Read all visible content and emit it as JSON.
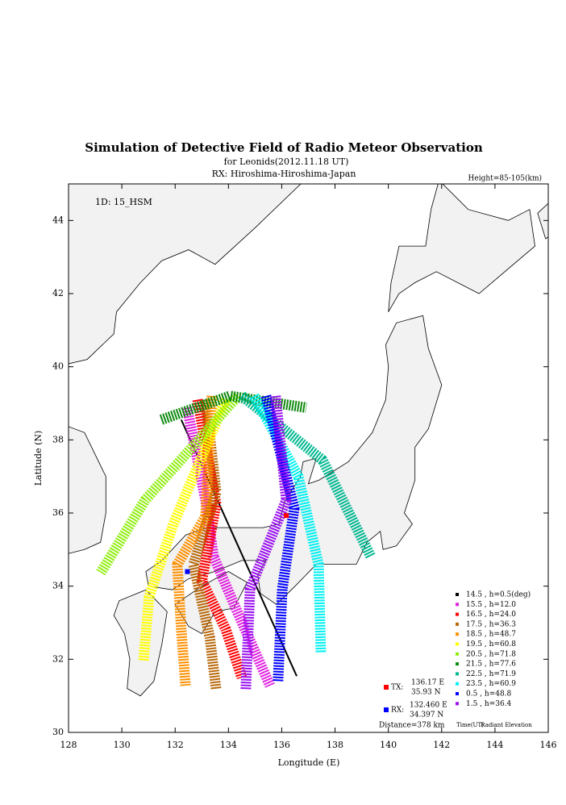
{
  "chart_data": {
    "type": "line",
    "title": "Simulation of Detective Field of Radio Meteor Observation",
    "subtitle": "for Leonids(2012.11.18 UT)",
    "rx_line": "RX: Hiroshima-Hiroshima-Japan",
    "height_label": "Height=85-105(km)",
    "id_label": "1D: 15_HSM",
    "x_label": "Longitude (E)",
    "y_label": "Latitude (N)",
    "xlim": [
      128,
      146
    ],
    "ylim": [
      30,
      45
    ],
    "xticks": [
      128,
      130,
      132,
      134,
      136,
      138,
      140,
      142,
      144,
      146
    ],
    "yticks": [
      30,
      32,
      34,
      36,
      38,
      40,
      42,
      44
    ],
    "legend_time_header": "Time(UT)",
    "legend_elev_header": "Radiant Elevation",
    "tx": {
      "label": "TX:",
      "lon_label": "136.17 E",
      "lat_label": "35.93 N",
      "x": 136.17,
      "y": 35.93,
      "color": "#ff0000"
    },
    "rx": {
      "label": "RX:",
      "lon_label": "132.460 E",
      "lat_label": "34.397 N",
      "x": 132.46,
      "y": 34.397,
      "color": "#0000ff"
    },
    "distance": "Distance=378 km",
    "series": [
      {
        "name": "14.5 ,  h=0.5(deg)",
        "color": "#000000",
        "x": [
          132.23,
          136.56
        ],
        "y": [
          38.55,
          31.54
        ]
      },
      {
        "name": "15.5 ,  h=12.0",
        "color": "#e020e0",
        "x": [
          132.45,
          132.69,
          133.14,
          133.44,
          134.35,
          135.56
        ],
        "y": [
          38.88,
          38.0,
          36.35,
          34.81,
          33.27,
          31.28
        ]
      },
      {
        "name": "16.5 ,  h=24.0",
        "color": "#ff0000",
        "x": [
          132.84,
          133.54,
          133.0,
          133.9,
          134.5
        ],
        "y": [
          39.1,
          36.24,
          34.14,
          32.82,
          31.5
        ]
      },
      {
        "name": "17.5 ,  h=36.3",
        "color": "#b8680a",
        "x": [
          133.14,
          133.54,
          132.69,
          133.3,
          133.54
        ],
        "y": [
          39.1,
          36.57,
          34.59,
          32.6,
          31.17
        ]
      },
      {
        "name": "18.5 ,  h=48.7",
        "color": "#ff9000",
        "x": [
          133.38,
          133.14,
          132.08,
          132.23,
          132.39
        ],
        "y": [
          39.2,
          35.9,
          34.59,
          32.82,
          31.28
        ]
      },
      {
        "name": "19.5 ,  h=60.8",
        "color": "#ffff00",
        "x": [
          133.9,
          131.93,
          131.02,
          130.81
        ],
        "y": [
          39.1,
          35.69,
          33.7,
          31.94
        ]
      },
      {
        "name": "20.5 ,  h=71.8",
        "color": "#90ee10",
        "x": [
          134.35,
          130.87,
          129.21
        ],
        "y": [
          39.2,
          36.35,
          34.37
        ]
      },
      {
        "name": "21.5 ,  h=77.6",
        "color": "#108a10",
        "x": [
          131.48,
          134.05,
          136.92
        ],
        "y": [
          38.55,
          39.2,
          38.88
        ]
      },
      {
        "name": "22.5 ,  h=71.9",
        "color": "#00b890",
        "x": [
          134.5,
          137.53,
          139.34
        ],
        "y": [
          39.2,
          37.45,
          34.81
        ]
      },
      {
        "name": "23.5 ,  h=60.9",
        "color": "#00f0f0",
        "x": [
          134.96,
          136.62,
          137.38,
          137.47
        ],
        "y": [
          39.2,
          37.0,
          34.59,
          32.16
        ]
      },
      {
        "name": "0.5  ,  h=48.8",
        "color": "#0000ff",
        "x": [
          135.41,
          136.47,
          136.02,
          135.86
        ],
        "y": [
          39.2,
          36.13,
          33.92,
          31.39
        ]
      },
      {
        "name": "1.5  ,  h=36.4",
        "color": "#9a10f0",
        "x": [
          135.77,
          136.17,
          134.81,
          134.65
        ],
        "y": [
          39.2,
          36.35,
          33.92,
          31.17
        ]
      }
    ]
  }
}
